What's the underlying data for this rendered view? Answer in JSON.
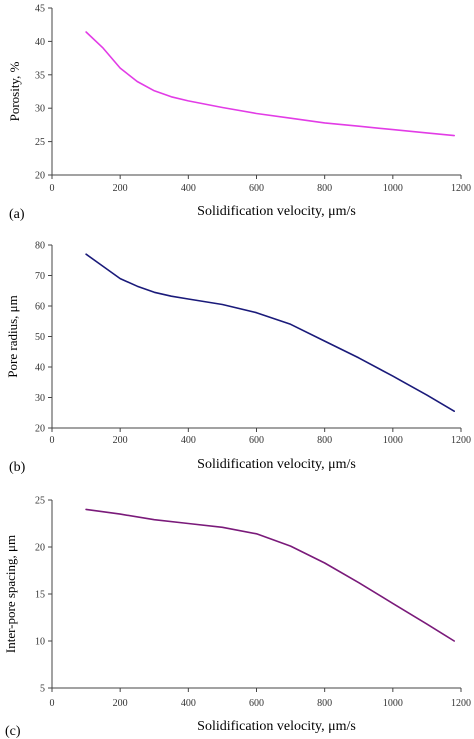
{
  "chart_data": [
    {
      "type": "line",
      "panel_label": "(a)",
      "xlabel": "Solidification velocity, μm/s",
      "ylabel": "Porosity, %",
      "xlim": [
        0,
        1200
      ],
      "ylim": [
        20,
        45
      ],
      "xticks": [
        "0",
        "200",
        "400",
        "600",
        "800",
        "1000",
        "1200"
      ],
      "yticks": [
        "20",
        "25",
        "30",
        "35",
        "40",
        "45"
      ],
      "color": "#e23ce6",
      "series": [
        {
          "x": [
            100,
            150,
            200,
            250,
            300,
            350,
            400,
            500,
            600,
            700,
            800,
            900,
            1000,
            1100,
            1180
          ],
          "y": [
            41.4,
            39.0,
            36.0,
            34.0,
            32.6,
            31.7,
            31.1,
            30.1,
            29.2,
            28.5,
            27.8,
            27.3,
            26.8,
            26.3,
            25.9
          ]
        }
      ]
    },
    {
      "type": "line",
      "panel_label": "(b)",
      "xlabel": "Solidification velocity, μm/s",
      "ylabel": "Pore radius, μm",
      "xlim": [
        0,
        1200
      ],
      "ylim": [
        20,
        80
      ],
      "xticks": [
        "0",
        "200",
        "400",
        "600",
        "800",
        "1000",
        "1200"
      ],
      "yticks": [
        "20",
        "30",
        "40",
        "50",
        "60",
        "70",
        "80"
      ],
      "color": "#1a1a7a",
      "series": [
        {
          "x": [
            100,
            150,
            200,
            250,
            300,
            350,
            400,
            500,
            600,
            700,
            800,
            900,
            1000,
            1100,
            1180
          ],
          "y": [
            77.0,
            73.0,
            69.0,
            66.5,
            64.5,
            63.2,
            62.3,
            60.5,
            57.8,
            54.0,
            48.5,
            43.0,
            37.0,
            30.8,
            25.5
          ]
        }
      ]
    },
    {
      "type": "line",
      "panel_label": "(c)",
      "xlabel": "Solidification velocity, μm/s",
      "ylabel": "Inter-pore spacing, μm",
      "xlim": [
        0,
        1200
      ],
      "ylim": [
        5,
        25
      ],
      "xticks": [
        "0",
        "200",
        "400",
        "600",
        "800",
        "1000",
        "1200"
      ],
      "yticks": [
        "5",
        "10",
        "15",
        "20",
        "25"
      ],
      "color": "#7a1a7a",
      "series": [
        {
          "x": [
            100,
            200,
            300,
            400,
            500,
            600,
            700,
            800,
            900,
            1000,
            1100,
            1180
          ],
          "y": [
            24.0,
            23.5,
            22.9,
            22.5,
            22.1,
            21.4,
            20.1,
            18.3,
            16.2,
            14.0,
            11.8,
            10.0
          ]
        }
      ]
    }
  ]
}
